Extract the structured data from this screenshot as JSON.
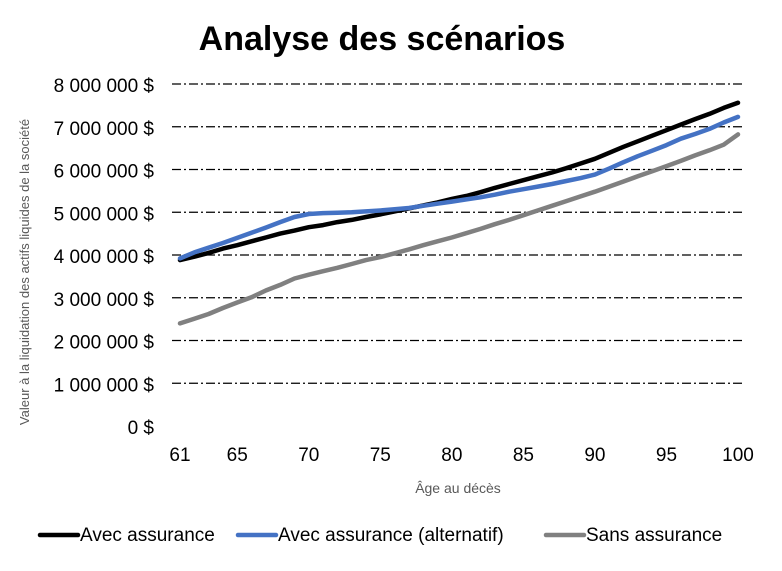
{
  "chart_data": {
    "type": "line",
    "title": "Analyse des scénarios",
    "xlabel": "Âge au décès",
    "ylabel": "Valeur à la liquidation des actifs liquides de la société",
    "xlim": [
      61,
      100
    ],
    "ylim": [
      0,
      8000000
    ],
    "x_ticks": [
      61,
      65,
      70,
      75,
      80,
      85,
      90,
      95,
      100
    ],
    "x_tick_labels": [
      "61",
      "65",
      "70",
      "75",
      "80",
      "85",
      "90",
      "95",
      "100"
    ],
    "y_ticks": [
      0,
      1000000,
      2000000,
      3000000,
      4000000,
      5000000,
      6000000,
      7000000,
      8000000
    ],
    "y_tick_labels": [
      "0 $",
      "1 000 000 $",
      "2 000 000 $",
      "3 000 000 $",
      "4 000 000 $",
      "5 000 000 $",
      "6 000 000 $",
      "7 000 000 $",
      "8 000 000 $"
    ],
    "grid": true,
    "legend_position": "bottom",
    "series": [
      {
        "name": "Avec assurance",
        "color": "#000000",
        "x": [
          61,
          62,
          63,
          64,
          65,
          66,
          67,
          68,
          69,
          70,
          71,
          72,
          73,
          74,
          75,
          76,
          77,
          78,
          79,
          80,
          81,
          82,
          83,
          84,
          85,
          86,
          87,
          88,
          89,
          90,
          91,
          92,
          93,
          94,
          95,
          96,
          97,
          98,
          99,
          100
        ],
        "y": [
          3880000,
          3960000,
          4050000,
          4150000,
          4230000,
          4320000,
          4410000,
          4500000,
          4570000,
          4650000,
          4700000,
          4770000,
          4820000,
          4890000,
          4950000,
          5020000,
          5090000,
          5160000,
          5230000,
          5310000,
          5380000,
          5470000,
          5570000,
          5660000,
          5750000,
          5840000,
          5930000,
          6030000,
          6140000,
          6250000,
          6390000,
          6530000,
          6660000,
          6790000,
          6920000,
          7050000,
          7180000,
          7300000,
          7440000,
          7560000
        ]
      },
      {
        "name": "Avec assurance (alternatif)",
        "color": "#4472c4",
        "x": [
          61,
          62,
          63,
          64,
          65,
          66,
          67,
          68,
          69,
          70,
          71,
          72,
          73,
          74,
          75,
          76,
          77,
          78,
          79,
          80,
          81,
          82,
          83,
          84,
          85,
          86,
          87,
          88,
          89,
          90,
          91,
          92,
          93,
          94,
          95,
          96,
          97,
          98,
          99,
          100
        ],
        "y": [
          3920000,
          4060000,
          4170000,
          4280000,
          4400000,
          4520000,
          4640000,
          4770000,
          4890000,
          4960000,
          4980000,
          4990000,
          5000000,
          5020000,
          5040000,
          5070000,
          5100000,
          5150000,
          5200000,
          5250000,
          5300000,
          5350000,
          5410000,
          5480000,
          5540000,
          5600000,
          5660000,
          5730000,
          5800000,
          5880000,
          6020000,
          6170000,
          6310000,
          6440000,
          6570000,
          6720000,
          6830000,
          6950000,
          7100000,
          7230000
        ]
      },
      {
        "name": "Sans assurance",
        "color": "#808080",
        "x": [
          61,
          62,
          63,
          64,
          65,
          66,
          67,
          68,
          69,
          70,
          71,
          72,
          73,
          74,
          75,
          76,
          77,
          78,
          79,
          80,
          81,
          82,
          83,
          84,
          85,
          86,
          87,
          88,
          89,
          90,
          91,
          92,
          93,
          94,
          95,
          96,
          97,
          98,
          99,
          100
        ],
        "y": [
          2400000,
          2510000,
          2620000,
          2760000,
          2890000,
          3010000,
          3170000,
          3300000,
          3450000,
          3540000,
          3620000,
          3700000,
          3790000,
          3880000,
          3950000,
          4040000,
          4130000,
          4230000,
          4320000,
          4410000,
          4510000,
          4610000,
          4720000,
          4820000,
          4930000,
          5040000,
          5150000,
          5260000,
          5370000,
          5480000,
          5600000,
          5720000,
          5840000,
          5960000,
          6080000,
          6200000,
          6330000,
          6450000,
          6580000,
          6820000
        ]
      }
    ]
  }
}
